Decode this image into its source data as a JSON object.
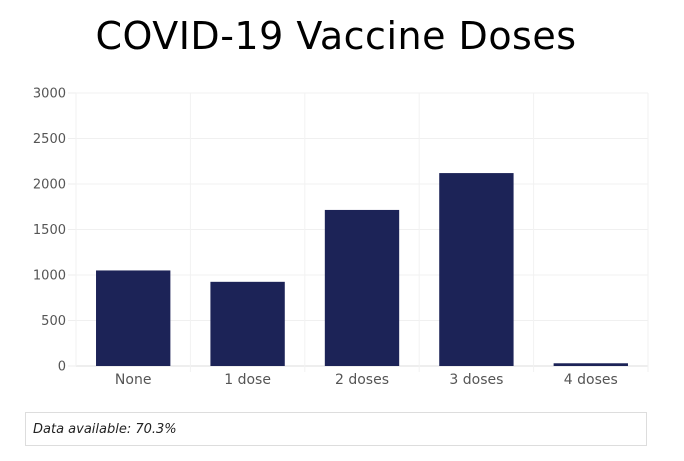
{
  "chart_data": {
    "type": "bar",
    "title": "COVID-19 Vaccine Doses",
    "categories": [
      "None",
      "1 dose",
      "2 doses",
      "3 doses",
      "4 doses"
    ],
    "values": [
      1050,
      925,
      1715,
      2120,
      30
    ],
    "ylim": [
      0,
      3000
    ],
    "yticks": [
      0,
      500,
      1000,
      1500,
      2000,
      2500,
      3000
    ],
    "xlabel": "",
    "ylabel": "",
    "grid": true,
    "legend": "none",
    "bar_color": "#1c2357"
  },
  "footer": {
    "note": "Data available: 70.3%"
  }
}
